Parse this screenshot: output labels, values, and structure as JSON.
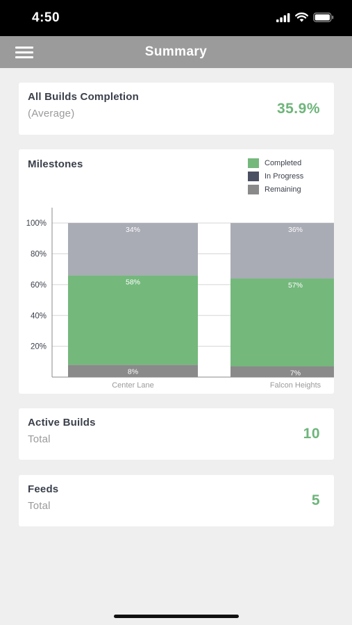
{
  "status_bar": {
    "time": "4:50"
  },
  "nav": {
    "title": "Summary"
  },
  "completion": {
    "title": "All Builds Completion",
    "subtitle": "(Average)",
    "value": "35.9%"
  },
  "milestones": {
    "title": "Milestones",
    "legend": [
      {
        "label": "Completed",
        "color": "#74b87c"
      },
      {
        "label": "In Progress",
        "color": "#4a5061"
      },
      {
        "label": "Remaining",
        "color": "#8a8a8a"
      }
    ]
  },
  "chart_data": {
    "type": "bar",
    "stacked": true,
    "categories": [
      "Center Lane",
      "Falcon Heights"
    ],
    "series": [
      {
        "name": "Remaining",
        "values": [
          8,
          7
        ],
        "labels": [
          "8%",
          "7%"
        ],
        "color": "#8a8a8a"
      },
      {
        "name": "Completed",
        "values": [
          58,
          57
        ],
        "labels": [
          "58%",
          "57%"
        ],
        "color": "#74b87c"
      },
      {
        "name": "In Progress",
        "values": [
          34,
          36
        ],
        "labels": [
          "34%",
          "36%"
        ],
        "color": "#a9abb5"
      }
    ],
    "yticks": [
      "20%",
      "40%",
      "60%",
      "80%",
      "100%"
    ],
    "ylim": [
      0,
      110
    ],
    "grid": true,
    "legend_position": "top-right"
  },
  "active_builds": {
    "title": "Active Builds",
    "subtitle": "Total",
    "value": "10"
  },
  "feeds": {
    "title": "Feeds",
    "subtitle": "Total",
    "value": "5"
  }
}
